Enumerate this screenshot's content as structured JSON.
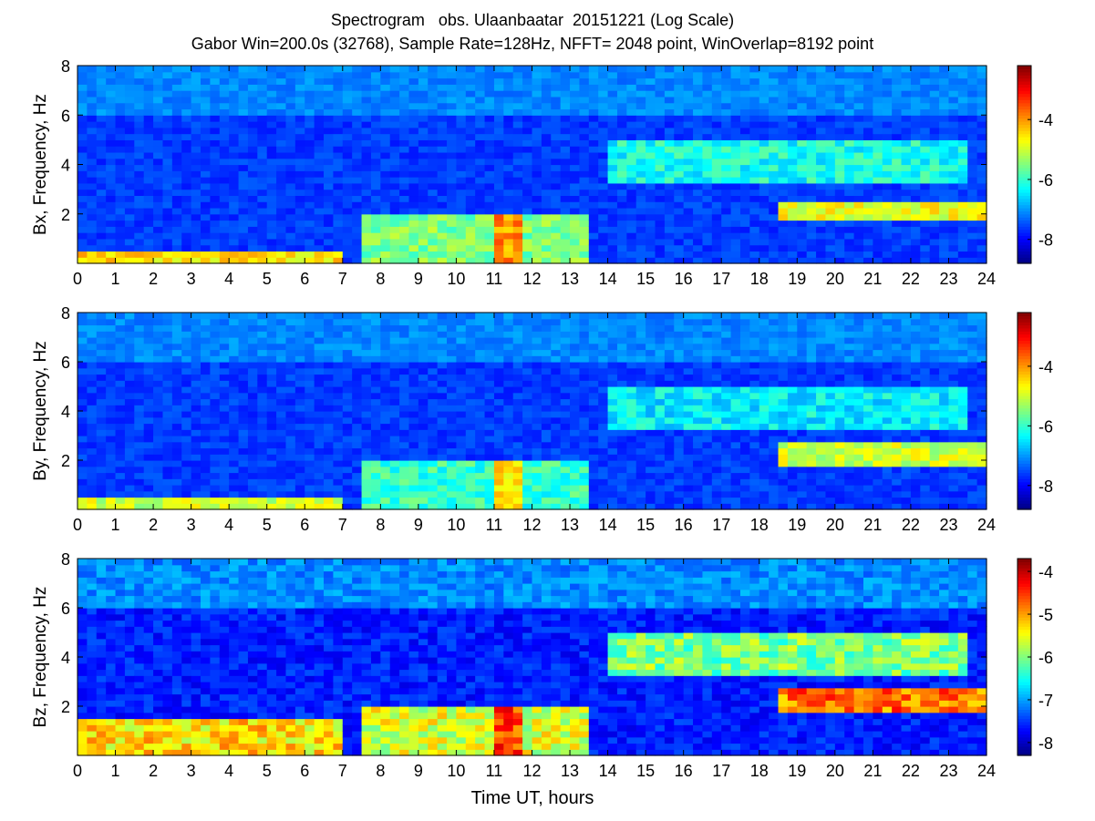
{
  "figure": {
    "title_line1": "Spectrogram   obs. Ulaanbaatar  20151221 (Log Scale)",
    "title_line2": "Gabor Win=200.0s (32768), Sample Rate=128Hz, NFFT= 2048 point, WinOverlap=8192 point",
    "shared_xlabel": "Time UT, hours"
  },
  "chart_data": [
    {
      "type": "heatmap",
      "ylabel": "Bx, Frequency, Hz",
      "xlim": [
        0,
        24
      ],
      "ylim": [
        0,
        8
      ],
      "x_ticks": [
        "0",
        "1",
        "2",
        "3",
        "4",
        "5",
        "6",
        "7",
        "8",
        "9",
        "10",
        "11",
        "12",
        "13",
        "14",
        "15",
        "16",
        "17",
        "18",
        "19",
        "20",
        "21",
        "22",
        "23",
        "24"
      ],
      "y_ticks": [
        "2",
        "4",
        "6",
        "8"
      ],
      "colorbar": {
        "colormap": "jet",
        "range": [
          -8.8,
          -2.2
        ],
        "ticks": [
          "-4",
          "-6",
          "-8"
        ]
      },
      "features": [
        {
          "x": [
            0,
            7
          ],
          "y": [
            0,
            0.6
          ],
          "level": -4.5
        },
        {
          "x": [
            7.5,
            13.5
          ],
          "y": [
            0,
            2
          ],
          "level": -5.5
        },
        {
          "x": [
            11,
            11.8
          ],
          "y": [
            0,
            2
          ],
          "level": -4.0
        },
        {
          "x": [
            14,
            23.5
          ],
          "y": [
            3.2,
            5
          ],
          "level": -6.2
        },
        {
          "x": [
            18.5,
            24
          ],
          "y": [
            1.8,
            2.6
          ],
          "level": -4.8
        }
      ]
    },
    {
      "type": "heatmap",
      "ylabel": "By, Frequency, Hz",
      "xlim": [
        0,
        24
      ],
      "ylim": [
        0,
        8
      ],
      "x_ticks": [
        "0",
        "1",
        "2",
        "3",
        "4",
        "5",
        "6",
        "7",
        "8",
        "9",
        "10",
        "11",
        "12",
        "13",
        "14",
        "15",
        "16",
        "17",
        "18",
        "19",
        "20",
        "21",
        "22",
        "23",
        "24"
      ],
      "y_ticks": [
        "2",
        "4",
        "6",
        "8"
      ],
      "colorbar": {
        "colormap": "jet",
        "range": [
          -8.8,
          -2.2
        ],
        "ticks": [
          "-4",
          "-6",
          "-8"
        ]
      },
      "features": [
        {
          "x": [
            0,
            7
          ],
          "y": [
            0,
            0.5
          ],
          "level": -5.0
        },
        {
          "x": [
            7.5,
            13.5
          ],
          "y": [
            0,
            2
          ],
          "level": -6.0
        },
        {
          "x": [
            11,
            11.8
          ],
          "y": [
            0,
            2
          ],
          "level": -4.5
        },
        {
          "x": [
            14,
            23.5
          ],
          "y": [
            3.2,
            5
          ],
          "level": -6.4
        },
        {
          "x": [
            18.5,
            24
          ],
          "y": [
            1.8,
            2.8
          ],
          "level": -5.0
        }
      ]
    },
    {
      "type": "heatmap",
      "ylabel": "Bz, Frequency, Hz",
      "xlim": [
        0,
        24
      ],
      "ylim": [
        0,
        8
      ],
      "x_ticks": [
        "0",
        "1",
        "2",
        "3",
        "4",
        "5",
        "6",
        "7",
        "8",
        "9",
        "10",
        "11",
        "12",
        "13",
        "14",
        "15",
        "16",
        "17",
        "18",
        "19",
        "20",
        "21",
        "22",
        "23",
        "24"
      ],
      "y_ticks": [
        "2",
        "4",
        "6",
        "8"
      ],
      "colorbar": {
        "colormap": "jet",
        "range": [
          -8.3,
          -3.7
        ],
        "ticks": [
          "-4",
          "-5",
          "-6",
          "-7",
          "-8"
        ]
      },
      "features": [
        {
          "x": [
            0,
            7
          ],
          "y": [
            0,
            1.5
          ],
          "level": -5.3
        },
        {
          "x": [
            7.5,
            13.5
          ],
          "y": [
            0,
            2
          ],
          "level": -5.6
        },
        {
          "x": [
            11,
            11.8
          ],
          "y": [
            0,
            2
          ],
          "level": -4.5
        },
        {
          "x": [
            14,
            23.5
          ],
          "y": [
            3.2,
            5
          ],
          "level": -6.0
        },
        {
          "x": [
            18.5,
            24
          ],
          "y": [
            1.8,
            2.8
          ],
          "level": -4.8
        }
      ]
    }
  ]
}
